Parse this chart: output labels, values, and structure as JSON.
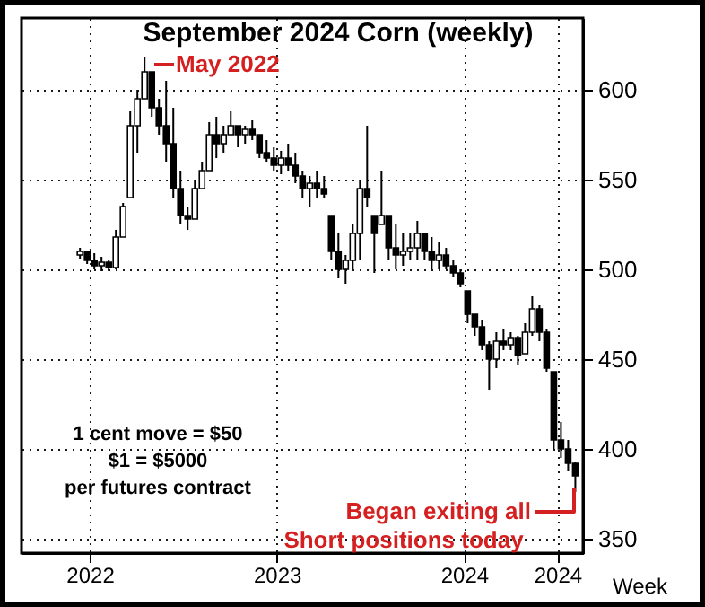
{
  "chart_data": {
    "type": "candlestick",
    "title": "September 2024 Corn (weekly)",
    "xlabel": "Week",
    "x": [
      "2021-12-13",
      "2021-12-27",
      "2022-01-10",
      "2022-01-24",
      "2022-02-07",
      "2022-02-21",
      "2022-03-07",
      "2022-03-21",
      "2022-04-04",
      "2022-04-18",
      "2022-05-02",
      "2022-05-16",
      "2022-05-30",
      "2022-06-13",
      "2022-06-27",
      "2022-07-11",
      "2022-07-25",
      "2022-08-08",
      "2022-08-22",
      "2022-09-05",
      "2022-09-19",
      "2022-10-03",
      "2022-10-17",
      "2022-10-31",
      "2022-11-14",
      "2022-11-28",
      "2022-12-12",
      "2022-12-26",
      "2023-01-09",
      "2023-01-23",
      "2023-02-06",
      "2023-02-20",
      "2023-03-06",
      "2023-03-20",
      "2023-04-03",
      "2023-04-17",
      "2023-05-01",
      "2023-05-15",
      "2023-05-29",
      "2023-06-12",
      "2023-06-26",
      "2023-07-10",
      "2023-07-24",
      "2023-08-07",
      "2023-08-21",
      "2023-09-04",
      "2023-09-18",
      "2023-10-02",
      "2023-10-16",
      "2023-10-30",
      "2023-11-13",
      "2023-11-27",
      "2023-12-11",
      "2023-12-25",
      "2024-01-08",
      "2024-01-22",
      "2024-02-05",
      "2024-02-19",
      "2024-03-04",
      "2024-03-18",
      "2024-04-01",
      "2024-04-15",
      "2024-04-29",
      "2024-05-13",
      "2024-05-27",
      "2024-06-10",
      "2024-06-24",
      "2024-07-08",
      "2024-07-22",
      "2024-08-05"
    ],
    "ohlc": [
      [
        508,
        512,
        506,
        510
      ],
      [
        510,
        510,
        503,
        505
      ],
      [
        505,
        509,
        500,
        502
      ],
      [
        502,
        507,
        499,
        504
      ],
      [
        504,
        505,
        499,
        501
      ],
      [
        501,
        522,
        500,
        518
      ],
      [
        518,
        537,
        518,
        535
      ],
      [
        540,
        588,
        540,
        580
      ],
      [
        580,
        600,
        565,
        595
      ],
      [
        595,
        618,
        595,
        610
      ],
      [
        610,
        610,
        585,
        590
      ],
      [
        590,
        595,
        575,
        580
      ],
      [
        580,
        605,
        560,
        570
      ],
      [
        570,
        590,
        540,
        545
      ],
      [
        545,
        555,
        525,
        530
      ],
      [
        530,
        535,
        522,
        528
      ],
      [
        528,
        550,
        528,
        545
      ],
      [
        545,
        560,
        545,
        555
      ],
      [
        555,
        582,
        555,
        575
      ],
      [
        575,
        585,
        562,
        570
      ],
      [
        570,
        580,
        565,
        575
      ],
      [
        575,
        588,
        575,
        580
      ],
      [
        580,
        580,
        568,
        575
      ],
      [
        575,
        580,
        570,
        578
      ],
      [
        578,
        583,
        572,
        575
      ],
      [
        575,
        575,
        562,
        565
      ],
      [
        565,
        572,
        560,
        562
      ],
      [
        562,
        568,
        555,
        558
      ],
      [
        558,
        566,
        553,
        562
      ],
      [
        562,
        570,
        555,
        558
      ],
      [
        558,
        565,
        548,
        552
      ],
      [
        552,
        555,
        540,
        545
      ],
      [
        545,
        552,
        535,
        548
      ],
      [
        548,
        555,
        540,
        545
      ],
      [
        545,
        552,
        540,
        542
      ],
      [
        530,
        530,
        505,
        510
      ],
      [
        510,
        520,
        495,
        500
      ],
      [
        500,
        508,
        492,
        505
      ],
      [
        505,
        525,
        500,
        520
      ],
      [
        520,
        550,
        505,
        545
      ],
      [
        545,
        580,
        535,
        540
      ],
      [
        530,
        530,
        498,
        520
      ],
      [
        525,
        555,
        525,
        530
      ],
      [
        530,
        530,
        505,
        512
      ],
      [
        512,
        525,
        500,
        508
      ],
      [
        508,
        520,
        502,
        510
      ],
      [
        510,
        520,
        505,
        512
      ],
      [
        512,
        527,
        505,
        520
      ],
      [
        520,
        520,
        505,
        510
      ],
      [
        510,
        518,
        500,
        505
      ],
      [
        505,
        515,
        500,
        508
      ],
      [
        508,
        512,
        500,
        502
      ],
      [
        502,
        505,
        496,
        498
      ],
      [
        498,
        500,
        490,
        492
      ],
      [
        488,
        488,
        470,
        475
      ],
      [
        475,
        475,
        463,
        468
      ],
      [
        468,
        472,
        455,
        458
      ],
      [
        458,
        460,
        433,
        450
      ],
      [
        450,
        465,
        445,
        460
      ],
      [
        460,
        467,
        455,
        458
      ],
      [
        458,
        465,
        455,
        462
      ],
      [
        462,
        463,
        447,
        452
      ],
      [
        453,
        470,
        453,
        465
      ],
      [
        465,
        485,
        463,
        478
      ],
      [
        478,
        480,
        460,
        465
      ],
      [
        465,
        467,
        443,
        445
      ],
      [
        443,
        443,
        400,
        405
      ],
      [
        405,
        415,
        395,
        400
      ],
      [
        400,
        405,
        388,
        392
      ],
      [
        392,
        393,
        376,
        385
      ]
    ],
    "color": "#000000",
    "xlim": [
      "2021-08-21",
      "2024-08-20"
    ],
    "xticks": [
      {
        "value": "2022-01-01",
        "label": "2022"
      },
      {
        "value": "2023-01-01",
        "label": "2023"
      },
      {
        "value": "2024-01-01",
        "label": "2024"
      },
      {
        "value": "2024-07-01",
        "label": "2024"
      }
    ],
    "ylim": [
      342,
      640
    ],
    "yticks": [
      350,
      400,
      450,
      500,
      550,
      600
    ],
    "grid": true,
    "annotations": [
      "May 2022",
      "1 cent move = $50",
      "$1 = $5000",
      "per futures contract",
      "Began exiting all",
      "Short positions today"
    ]
  }
}
